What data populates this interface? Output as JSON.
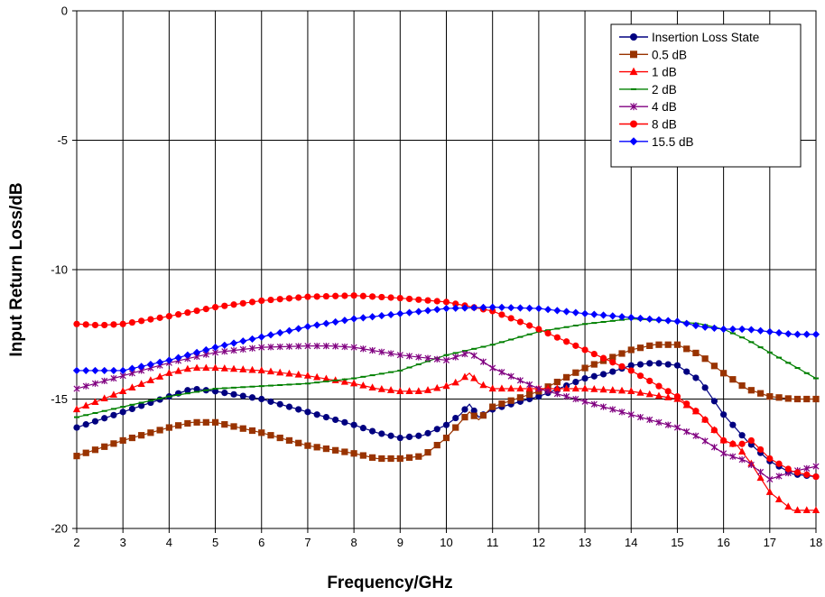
{
  "chart_data": {
    "type": "line",
    "title": "",
    "xlabel": "Frequency/GHz",
    "ylabel": "Input Return Loss/dB",
    "xlim": [
      2,
      18
    ],
    "ylim": [
      -20,
      0
    ],
    "x_ticks": [
      2,
      3,
      4,
      5,
      6,
      7,
      8,
      9,
      10,
      11,
      12,
      13,
      14,
      15,
      16,
      17,
      18
    ],
    "y_ticks": [
      0,
      -5,
      -10,
      -15,
      -20
    ],
    "grid": true,
    "legend_position": "top-right",
    "series": [
      {
        "name": "Insertion Loss State",
        "color": "#000080",
        "marker": "circle",
        "x": [
          2,
          3,
          4,
          4.5,
          5,
          6,
          7,
          8,
          8.5,
          9,
          9.5,
          10,
          10.3,
          10.5,
          10.7,
          11,
          12,
          13,
          13.5,
          14,
          14.5,
          15,
          15.5,
          16,
          16.5,
          17,
          17.5,
          18
        ],
        "y": [
          -16.1,
          -15.5,
          -14.9,
          -14.6,
          -14.7,
          -15.0,
          -15.5,
          -16.0,
          -16.3,
          -16.5,
          -16.4,
          -16.0,
          -15.6,
          -15.2,
          -15.7,
          -15.4,
          -14.9,
          -14.2,
          -14.0,
          -13.7,
          -13.6,
          -13.7,
          -14.3,
          -15.6,
          -16.6,
          -17.4,
          -17.9,
          -18.0
        ]
      },
      {
        "name": "0.5 dB",
        "color": "#993300",
        "marker": "square",
        "x": [
          2,
          3,
          4,
          4.5,
          5,
          6,
          7,
          8,
          8.5,
          9,
          9.5,
          10,
          10.3,
          10.5,
          10.7,
          11,
          12,
          13,
          14,
          14.5,
          15,
          15.5,
          16,
          16.5,
          17,
          17.5,
          18
        ],
        "y": [
          -17.2,
          -16.6,
          -16.1,
          -15.9,
          -15.9,
          -16.3,
          -16.8,
          -17.1,
          -17.3,
          -17.3,
          -17.2,
          -16.5,
          -15.9,
          -15.5,
          -15.8,
          -15.3,
          -14.7,
          -13.8,
          -13.1,
          -12.9,
          -12.9,
          -13.3,
          -14.0,
          -14.6,
          -14.9,
          -15.0,
          -15.0
        ]
      },
      {
        "name": "1 dB",
        "color": "#ff0000",
        "marker": "triangle",
        "x": [
          2,
          3,
          4,
          4.5,
          5,
          6,
          7,
          8,
          8.5,
          9,
          9.5,
          10,
          10.3,
          10.5,
          10.7,
          11,
          12,
          13,
          14,
          15,
          15.5,
          16,
          16.3,
          16.6,
          17,
          17.5,
          18
        ],
        "y": [
          -15.4,
          -14.7,
          -14.0,
          -13.8,
          -13.8,
          -13.9,
          -14.1,
          -14.4,
          -14.6,
          -14.7,
          -14.7,
          -14.5,
          -14.3,
          -14.0,
          -14.4,
          -14.6,
          -14.6,
          -14.6,
          -14.7,
          -15.0,
          -15.6,
          -16.6,
          -16.8,
          -17.5,
          -18.6,
          -19.3,
          -19.3
        ]
      },
      {
        "name": "2 dB",
        "color": "#008000",
        "marker": "dash",
        "x": [
          2,
          3,
          4,
          5,
          6,
          7,
          8,
          9,
          10,
          10.5,
          11,
          12,
          13,
          14,
          15,
          15.5,
          16,
          16.5,
          17,
          17.5,
          18
        ],
        "y": [
          -15.7,
          -15.3,
          -14.9,
          -14.6,
          -14.5,
          -14.4,
          -14.2,
          -13.9,
          -13.3,
          -13.1,
          -12.9,
          -12.4,
          -12.1,
          -11.9,
          -12.0,
          -12.1,
          -12.3,
          -12.7,
          -13.2,
          -13.7,
          -14.2
        ]
      },
      {
        "name": "4 dB",
        "color": "#800080",
        "marker": "star",
        "x": [
          2,
          3,
          4,
          5,
          6,
          7,
          7.5,
          8,
          9,
          10,
          10.5,
          11,
          11.5,
          12,
          13,
          14,
          15,
          15.5,
          16,
          16.5,
          17,
          17.5,
          18
        ],
        "y": [
          -14.6,
          -14.1,
          -13.6,
          -13.2,
          -13.0,
          -12.95,
          -12.95,
          -13.0,
          -13.3,
          -13.5,
          -13.2,
          -13.8,
          -14.2,
          -14.6,
          -15.1,
          -15.6,
          -16.1,
          -16.5,
          -17.1,
          -17.4,
          -18.1,
          -17.8,
          -17.6
        ]
      },
      {
        "name": "8 dB",
        "color": "#ff0000",
        "marker": "circle",
        "x": [
          2,
          2.5,
          3,
          4,
          5,
          6,
          7,
          8,
          9,
          10,
          11,
          12,
          13,
          14,
          15,
          15.5,
          16,
          16.3,
          16.6,
          17,
          17.5,
          18
        ],
        "y": [
          -12.1,
          -12.15,
          -12.1,
          -11.8,
          -11.45,
          -11.2,
          -11.05,
          -11.0,
          -11.1,
          -11.25,
          -11.6,
          -12.3,
          -13.1,
          -13.9,
          -14.9,
          -15.6,
          -16.6,
          -16.8,
          -16.6,
          -17.3,
          -17.8,
          -18.0
        ]
      },
      {
        "name": "15.5 dB",
        "color": "#0000ff",
        "marker": "diamond",
        "x": [
          2,
          3,
          4,
          5,
          6,
          7,
          8,
          9,
          10,
          11,
          12,
          13,
          14,
          15,
          15.5,
          16,
          16.5,
          17,
          17.5,
          18
        ],
        "y": [
          -13.9,
          -13.9,
          -13.5,
          -13.0,
          -12.6,
          -12.2,
          -11.9,
          -11.7,
          -11.5,
          -11.45,
          -11.5,
          -11.7,
          -11.85,
          -12.0,
          -12.2,
          -12.3,
          -12.3,
          -12.4,
          -12.5,
          -12.5
        ]
      }
    ]
  }
}
